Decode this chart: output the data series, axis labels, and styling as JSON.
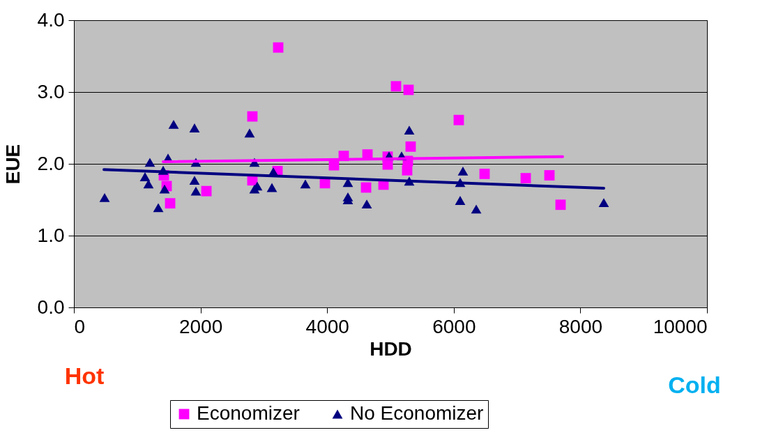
{
  "chart_data": {
    "type": "scatter",
    "xlabel": "HDD",
    "ylabel": "EUE",
    "xlim": [
      0,
      10000
    ],
    "xticks": [
      0,
      2000,
      4000,
      6000,
      8000,
      10000
    ],
    "ylim": [
      0.0,
      4.0
    ],
    "yticks": [
      {
        "value": 0,
        "label": "0.0"
      },
      {
        "value": 1,
        "label": "1.0"
      },
      {
        "value": 2,
        "label": "2.0"
      },
      {
        "value": 3,
        "label": "3.0"
      },
      {
        "value": 4,
        "label": "4.0"
      }
    ],
    "grid": "y",
    "legend": "bottom",
    "annotations": [
      "Hot",
      "Cold"
    ],
    "series": [
      {
        "name": "Economizer",
        "color": "#ff00ff",
        "marker": "square",
        "x": [
          1421,
          1465,
          1520,
          2093,
          2819,
          2819,
          3216,
          3227,
          3965,
          4108,
          4262,
          4615,
          4637,
          4890,
          4956,
          4956,
          5088,
          5275,
          5286,
          5264,
          5319,
          6079,
          6487,
          7137,
          7511,
          7687
        ],
        "values": [
          1.84,
          1.69,
          1.45,
          1.62,
          2.66,
          1.77,
          1.9,
          3.62,
          1.73,
          1.98,
          2.11,
          1.67,
          2.13,
          1.71,
          2.1,
          1.99,
          3.08,
          2.04,
          3.03,
          1.91,
          2.24,
          2.61,
          1.86,
          1.8,
          1.84,
          1.43
        ]
      },
      {
        "name": "No Economizer",
        "color": "#000080",
        "marker": "triangle",
        "x": [
          485,
          1123,
          1178,
          1200,
          1333,
          1410,
          1432,
          1487,
          1575,
          1905,
          1905,
          1927,
          1927,
          2775,
          2852,
          2852,
          2896,
          3128,
          3150,
          3656,
          4328,
          4328,
          4328,
          4626,
          4978,
          5176,
          5297,
          5297,
          6101,
          6101,
          6145,
          6355,
          8370
        ],
        "values": [
          1.53,
          1.82,
          1.72,
          2.02,
          1.39,
          1.91,
          1.65,
          2.08,
          2.55,
          2.5,
          1.77,
          2.02,
          1.62,
          2.43,
          2.02,
          1.65,
          1.69,
          1.67,
          1.89,
          1.72,
          1.74,
          1.54,
          1.5,
          1.44,
          2.11,
          2.11,
          2.47,
          1.76,
          1.74,
          1.49,
          1.9,
          1.37,
          1.46
        ]
      },
      {
        "type": "line",
        "color": "#ff00ff",
        "x": [
          1410,
          7720
        ],
        "values": [
          2.03,
          2.1
        ]
      },
      {
        "type": "line",
        "color": "#000080",
        "x": [
          474,
          8370
        ],
        "values": [
          1.92,
          1.66
        ]
      }
    ]
  }
}
